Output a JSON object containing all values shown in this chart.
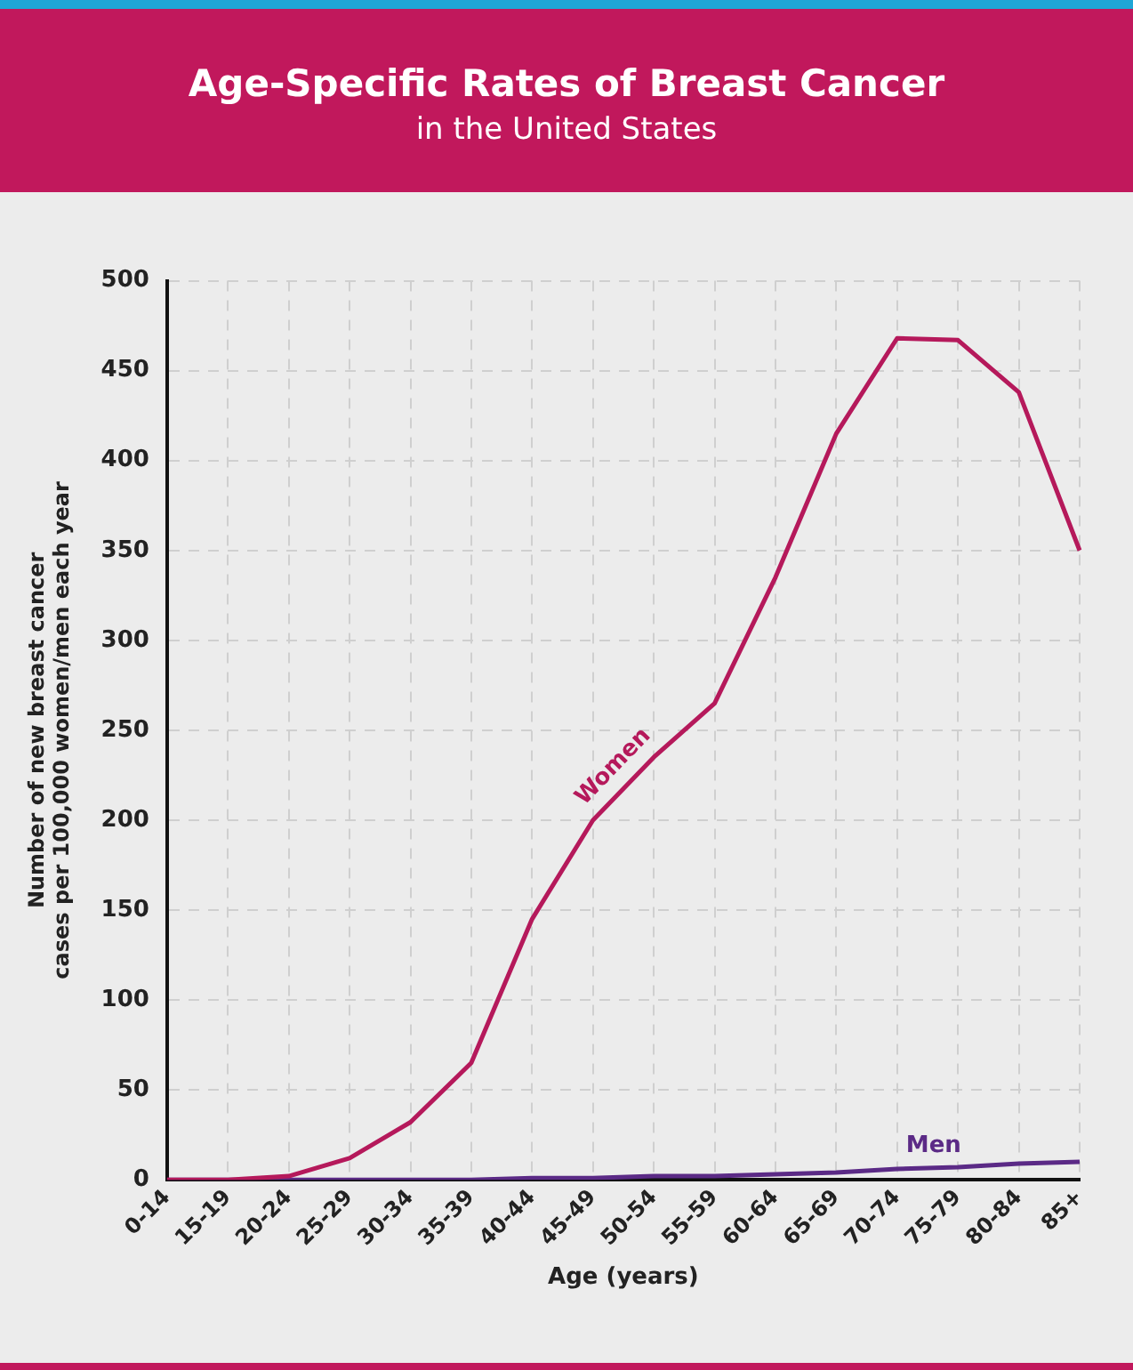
{
  "chart_data": {
    "type": "line",
    "title": "Age-Specific Rates of Breast Cancer",
    "subtitle": "in the United States",
    "xlabel": "Age (years)",
    "ylabel": "Number of new breast cancer cases per 100,000 women/men each year",
    "categories": [
      "0-14",
      "15-19",
      "20-24",
      "25-29",
      "30-34",
      "35-39",
      "40-44",
      "45-49",
      "50-54",
      "55-59",
      "60-64",
      "65-69",
      "70-74",
      "75-79",
      "80-84",
      "85+"
    ],
    "series": [
      {
        "name": "Women",
        "color": "#b5195b",
        "values": [
          0,
          0,
          2,
          12,
          32,
          65,
          145,
          200,
          235,
          265,
          335,
          415,
          468,
          467,
          438,
          350
        ]
      },
      {
        "name": "Men",
        "color": "#5b2a86",
        "values": [
          0,
          0,
          0,
          0,
          0,
          0,
          1,
          1,
          2,
          2,
          3,
          4,
          6,
          7,
          9,
          10
        ]
      }
    ],
    "ylim": [
      0,
      500
    ],
    "yticks": [
      0,
      50,
      100,
      150,
      200,
      250,
      300,
      350,
      400,
      450,
      500
    ],
    "grid": true,
    "legend": false,
    "marker": "none",
    "line_style": "solid"
  }
}
